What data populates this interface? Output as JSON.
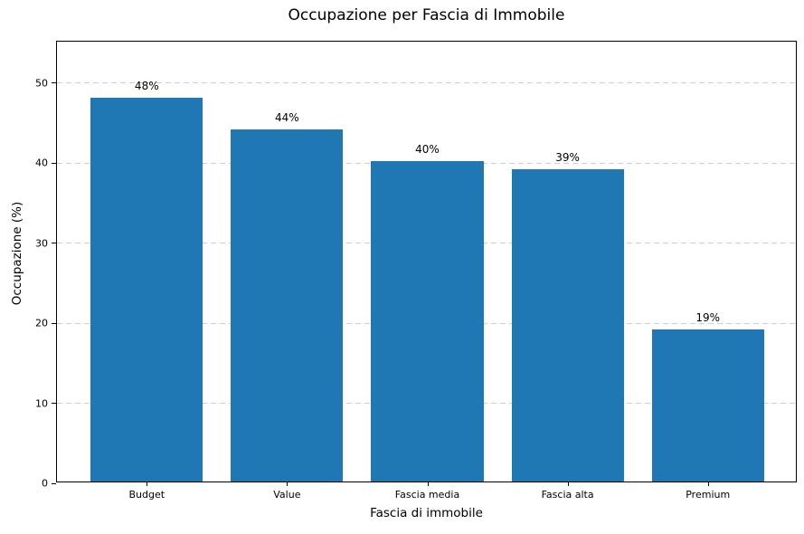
{
  "chart_data": {
    "type": "bar",
    "title": "Occupazione per Fascia di Immobile",
    "xlabel": "Fascia di immobile",
    "ylabel": "Occupazione (%)",
    "categories": [
      "Budget",
      "Value",
      "Fascia media",
      "Fascia alta",
      "Premium"
    ],
    "values": [
      48,
      44,
      40,
      39,
      19
    ],
    "bar_labels": [
      "48%",
      "44%",
      "40%",
      "39%",
      "19%"
    ],
    "yticks": [
      0,
      10,
      20,
      30,
      40,
      50
    ],
    "ylim": [
      0,
      55.2
    ],
    "grid": "horizontal-dashed",
    "legend": "none",
    "bar_color": "#1f77b4",
    "grid_color": "#cfcfcf",
    "axis_color": "#000000",
    "background": "#ffffff"
  }
}
